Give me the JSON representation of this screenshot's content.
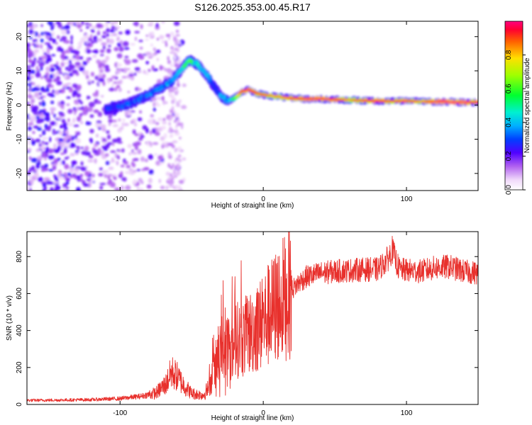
{
  "title": "S126.2025.353.00.45.R17",
  "chart_data": [
    {
      "type": "heatmap",
      "name": "spectrogram",
      "xlabel": "Height of straight line (km)",
      "ylabel": "Frequency (Hz)",
      "xlim": [
        -165,
        150
      ],
      "ylim": [
        -25,
        24.5
      ],
      "xticks": [
        -100,
        0,
        100
      ],
      "yticks": [
        -20,
        -10,
        0,
        10,
        20
      ],
      "colorbar": {
        "label": "Normalized spectral amplitude",
        "range": [
          0,
          1
        ],
        "ticks": [
          0.0,
          0.2,
          0.4,
          0.6,
          0.8
        ],
        "tick_labels": [
          "0.0",
          "0.2",
          "0.4",
          "0.6",
          "0.8"
        ],
        "colormap": "rainbow"
      },
      "ridge": {
        "x": [
          -110,
          -100,
          -90,
          -80,
          -72,
          -64,
          -58,
          -52,
          -46,
          -42,
          -38,
          -34,
          -30,
          -25,
          -20,
          -15,
          -10,
          -5,
          0,
          10,
          20,
          30,
          40,
          50,
          60,
          70,
          80,
          90,
          100,
          110,
          120,
          130,
          140,
          150
        ],
        "y": [
          -1,
          -0.5,
          1,
          3,
          5,
          7,
          10,
          13,
          12,
          10,
          8,
          5,
          3,
          1,
          2,
          4,
          4.5,
          3.5,
          3,
          2.5,
          2,
          1.8,
          1.8,
          1.6,
          1.5,
          1.3,
          1.2,
          1.1,
          1.2,
          1.0,
          1.0,
          0.9,
          0.8,
          0.8
        ],
        "amplitude": [
          0.25,
          0.28,
          0.3,
          0.32,
          0.35,
          0.4,
          0.48,
          0.55,
          0.45,
          0.45,
          0.35,
          0.3,
          0.35,
          0.4,
          0.55,
          0.85,
          0.9,
          0.85,
          0.8,
          0.75,
          0.85,
          0.9,
          0.9,
          0.88,
          0.75,
          0.85,
          0.9,
          0.8,
          0.85,
          0.75,
          0.9,
          0.95,
          0.9,
          0.85
        ]
      }
    },
    {
      "type": "line",
      "name": "snr",
      "xlabel": "Height of straight line (km)",
      "ylabel": "SNR (10 * v/v)",
      "xlim": [
        -165,
        150
      ],
      "ylim": [
        0,
        935
      ],
      "xticks": [
        -100,
        0,
        100
      ],
      "yticks": [
        0,
        200,
        400,
        600,
        800
      ],
      "color": "#e8302c",
      "envelope": {
        "x": [
          -165,
          -140,
          -120,
          -100,
          -85,
          -75,
          -68,
          -64,
          -60,
          -56,
          -50,
          -42,
          -38,
          -34,
          -30,
          -26,
          -22,
          -18,
          -14,
          -10,
          -6,
          -2,
          2,
          6,
          10,
          15,
          20,
          25,
          30,
          40,
          50,
          60,
          70,
          80,
          85,
          88,
          90,
          92,
          95,
          100,
          110,
          120,
          130,
          140,
          150
        ],
        "y": [
          22,
          24,
          26,
          32,
          45,
          62,
          110,
          175,
          150,
          110,
          60,
          50,
          90,
          200,
          280,
          320,
          330,
          350,
          360,
          380,
          410,
          430,
          470,
          500,
          540,
          580,
          620,
          660,
          690,
          710,
          720,
          725,
          730,
          730,
          770,
          800,
          840,
          790,
          730,
          725,
          720,
          740,
          745,
          720,
          710
        ]
      }
    }
  ]
}
